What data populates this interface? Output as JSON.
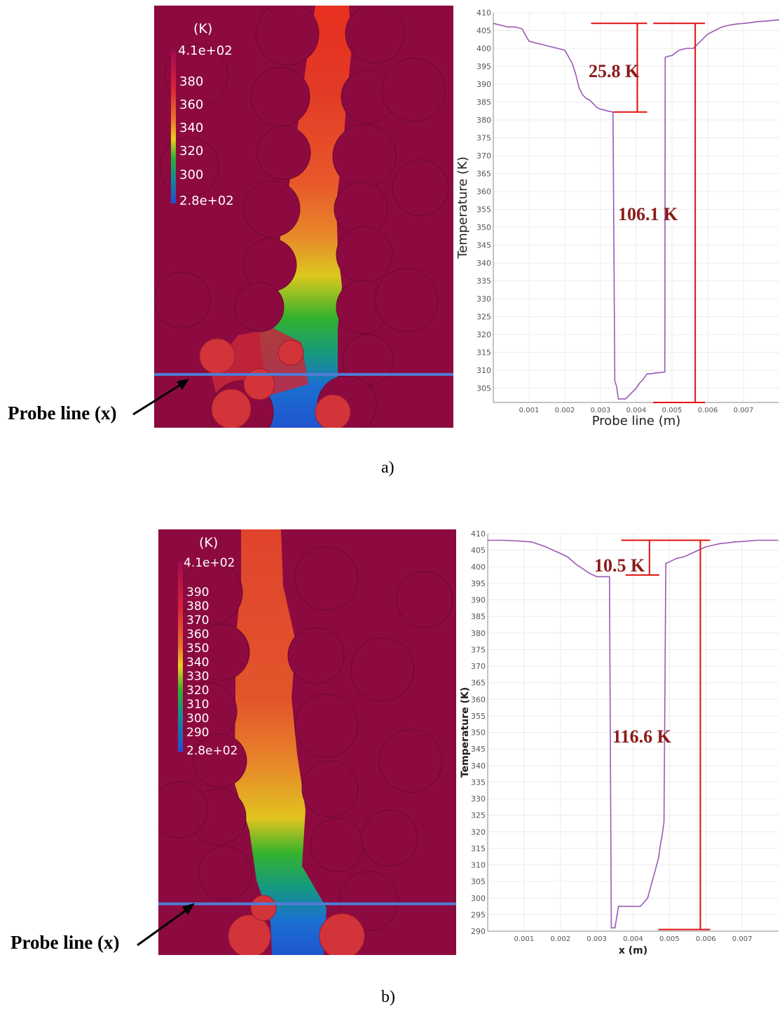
{
  "panels": [
    {
      "id": "a",
      "label": "a)",
      "probe_label": "Probe line (x)",
      "colorbar": {
        "title": "(K)",
        "labels": [
          "4.1e+02",
          "380",
          "360",
          "340",
          "320",
          "300",
          "2.8e+02"
        ],
        "range": [
          280,
          410
        ]
      }
    },
    {
      "id": "b",
      "label": "b)",
      "probe_label": "Probe line (x)",
      "colorbar": {
        "title": "(K)",
        "labels": [
          "4.1e+02",
          "390",
          "380",
          "370",
          "360",
          "350",
          "340",
          "330",
          "320",
          "310",
          "300",
          "290",
          "2.8e+02"
        ],
        "range": [
          280,
          410
        ]
      }
    }
  ],
  "chart_data": [
    {
      "type": "line",
      "xlabel": "Probe line  (m)",
      "ylabel": "Temperature  (K)",
      "xlim": [
        0,
        0.008
      ],
      "ylim": [
        301,
        410
      ],
      "xticks": [
        "0.001",
        "0.002",
        "0.003",
        "0.004",
        "0.005",
        "0.006",
        "0.007"
      ],
      "yticks": [
        "305",
        "310",
        "315",
        "320",
        "325",
        "330",
        "335",
        "340",
        "345",
        "350",
        "355",
        "360",
        "365",
        "370",
        "375",
        "380",
        "385",
        "390",
        "395",
        "400",
        "405",
        "410"
      ],
      "grid": true,
      "color": "#9b59b6",
      "series": [
        {
          "x": [
            0,
            0.0002,
            0.0004,
            0.0006,
            0.0008,
            0.001,
            0.0012,
            0.0014,
            0.0016,
            0.0018,
            0.002,
            0.0022,
            0.0023,
            0.0024,
            0.0025,
            0.0026,
            0.0027,
            0.0028,
            0.0029,
            0.003,
            0.0031,
            0.0032,
            0.0033,
            0.00335,
            0.0034,
            0.00345,
            0.0035,
            0.0036,
            0.0037,
            0.0038,
            0.0039,
            0.004,
            0.0041,
            0.0042,
            0.0043,
            0.0044,
            0.0045,
            0.0046,
            0.0047,
            0.0048,
            0.00481,
            0.0049,
            0.005,
            0.0052,
            0.0054,
            0.0056,
            0.0058,
            0.0059,
            0.006,
            0.0062,
            0.0064,
            0.0066,
            0.0068,
            0.007,
            0.0072,
            0.0074,
            0.0076,
            0.0078,
            0.008
          ],
          "y": [
            407,
            406.5,
            406,
            406,
            405.5,
            402,
            401.5,
            401,
            400.5,
            400,
            399.5,
            396,
            393,
            389,
            387,
            386,
            385.5,
            384.5,
            383.5,
            383,
            382.8,
            382.5,
            382.3,
            382.2,
            307,
            305.5,
            302,
            302,
            302,
            303,
            304,
            305,
            306.5,
            307.5,
            309,
            309,
            309.2,
            309.3,
            309.4,
            309.5,
            397.5,
            397.8,
            398,
            399.5,
            400,
            400,
            402,
            403,
            404,
            405,
            406,
            406.5,
            406.8,
            407,
            407.2,
            407.5,
            407.6,
            407.8,
            408
          ]
        }
      ],
      "annotations": [
        {
          "text": "25.8 K",
          "value": 25.8
        },
        {
          "text": "106.1 K",
          "value": 106.1
        }
      ]
    },
    {
      "type": "line",
      "xlabel": "x  (m)",
      "ylabel": "Temperature  (K)",
      "xlim": [
        0,
        0.008
      ],
      "ylim": [
        290,
        410
      ],
      "xticks": [
        "0.001",
        "0.002",
        "0.003",
        "0.004",
        "0.005",
        "0.006",
        "0.007"
      ],
      "yticks": [
        "290",
        "295",
        "300",
        "305",
        "310",
        "315",
        "320",
        "325",
        "330",
        "335",
        "340",
        "345",
        "350",
        "355",
        "360",
        "365",
        "370",
        "375",
        "380",
        "385",
        "390",
        "395",
        "400",
        "405",
        "410"
      ],
      "grid": true,
      "color": "#9b59b6",
      "series": [
        {
          "x": [
            0,
            0.0004,
            0.0008,
            0.0012,
            0.0016,
            0.002,
            0.0022,
            0.0024,
            0.0026,
            0.0028,
            0.003,
            0.0032,
            0.00335,
            0.0034,
            0.0035,
            0.0036,
            0.0038,
            0.004,
            0.0042,
            0.0044,
            0.0045,
            0.0046,
            0.0047,
            0.00475,
            0.0048,
            0.00485,
            0.0049,
            0.005,
            0.0052,
            0.0054,
            0.0056,
            0.0058,
            0.006,
            0.0062,
            0.0064,
            0.0066,
            0.0068,
            0.007,
            0.0072,
            0.0074,
            0.0076,
            0.0078,
            0.008
          ],
          "y": [
            408,
            408,
            407.8,
            407.5,
            406,
            404,
            403,
            401,
            399.5,
            398,
            397,
            397,
            397,
            291,
            291,
            297.5,
            297.5,
            297.5,
            297.5,
            300,
            304,
            308,
            312,
            316,
            319,
            323,
            401,
            401.5,
            402.5,
            403,
            404,
            405,
            406,
            406.5,
            407,
            407.2,
            407.5,
            407.6,
            407.8,
            408,
            408,
            408,
            408
          ]
        }
      ],
      "annotations": [
        {
          "text": "10.5 K",
          "value": 10.5
        },
        {
          "text": "116.6 K",
          "value": 116.6
        }
      ]
    }
  ]
}
